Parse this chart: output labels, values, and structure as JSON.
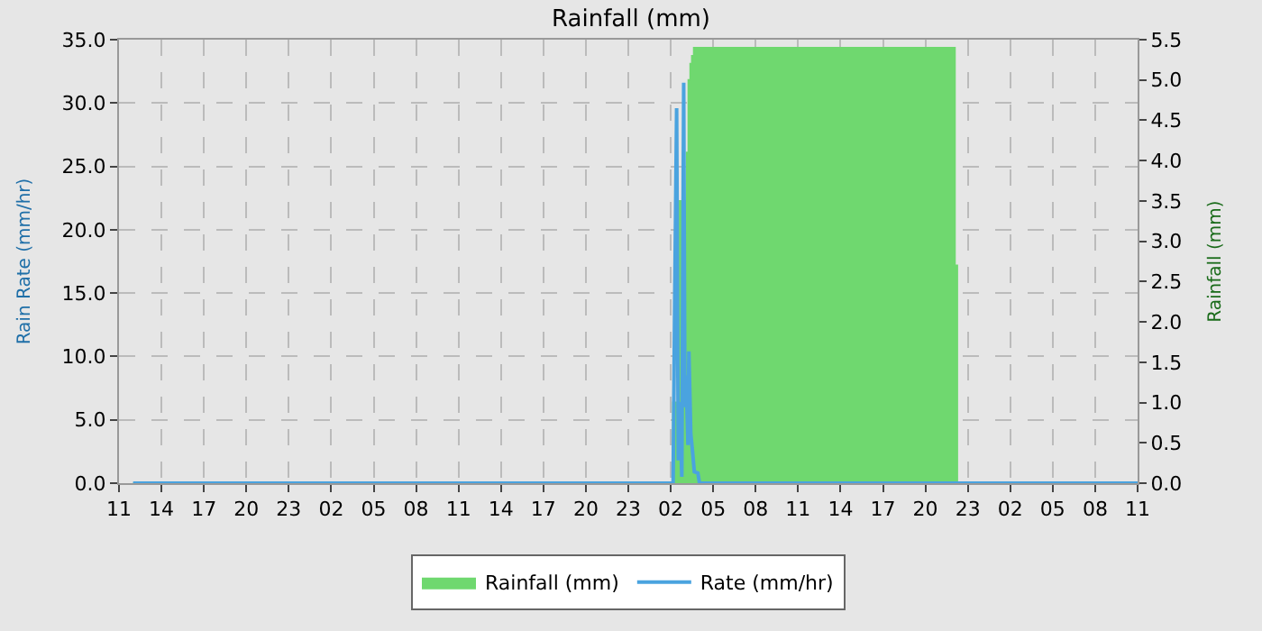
{
  "chart_data": {
    "type": "line",
    "title": "Rainfall (mm)",
    "ylabel": "Rain Rate (mm/hr)",
    "y2label": "Rainfall (mm)",
    "series": [
      {
        "name": "Rainfall (mm)",
        "type": "area",
        "axis": "y2",
        "color": "#6fd86f",
        "x": [
          "--01-01T12:00",
          "--01-03T02:10",
          "--01-03T02:38",
          "--01-03T03:08",
          "--01-03T03:15",
          "--01-03T03:23",
          "--01-03T03:30",
          "--01-03T03:38",
          "--01-03T03:45",
          "--01-03T22:05",
          "--01-03T22:15",
          "--01-04T11:00"
        ],
        "values": [
          0,
          1.0,
          3.5,
          4.1,
          5.0,
          5.2,
          5.3,
          5.4,
          5.4,
          2.7,
          0,
          0
        ]
      },
      {
        "name": "Rate (mm/hr)",
        "color": "#4aa3df",
        "x": [
          "--01-01T12:00",
          "--01-03T02:10",
          "--01-03T02:17",
          "--01-03T02:25",
          "--01-03T02:32",
          "--01-03T02:38",
          "--01-03T02:47",
          "--01-03T02:55",
          "--01-03T03:00",
          "--01-03T03:05",
          "--01-03T03:13",
          "--01-03T03:17",
          "--01-03T03:25",
          "--01-03T03:32",
          "--01-03T03:40",
          "--01-03T03:55",
          "--01-03T04:02",
          "--01-04T11:00"
        ],
        "values": [
          0,
          0,
          14.8,
          29.6,
          1.8,
          6.4,
          0.5,
          31.6,
          6.0,
          8.5,
          3.0,
          10.4,
          3.9,
          2.6,
          0.9,
          0.8,
          0,
          0
        ]
      }
    ],
    "xlim": [
      "--01-01T11:00",
      "--01-04T11:00"
    ],
    "xticks": [
      {
        "value": "--01-01T11:00",
        "label": "11"
      },
      {
        "value": "--01-01T14:00",
        "label": "14"
      },
      {
        "value": "--01-01T17:00",
        "label": "17"
      },
      {
        "value": "--01-01T20:00",
        "label": "20"
      },
      {
        "value": "--01-01T23:00",
        "label": "23"
      },
      {
        "value": "--01-02T02:00",
        "label": "02"
      },
      {
        "value": "--01-02T05:00",
        "label": "05"
      },
      {
        "value": "--01-02T08:00",
        "label": "08"
      },
      {
        "value": "--01-02T11:00",
        "label": "11"
      },
      {
        "value": "--01-02T14:00",
        "label": "14"
      },
      {
        "value": "--01-02T17:00",
        "label": "17"
      },
      {
        "value": "--01-02T20:00",
        "label": "20"
      },
      {
        "value": "--01-02T23:00",
        "label": "23"
      },
      {
        "value": "--01-03T02:00",
        "label": "02"
      },
      {
        "value": "--01-03T05:00",
        "label": "05"
      },
      {
        "value": "--01-03T08:00",
        "label": "08"
      },
      {
        "value": "--01-03T11:00",
        "label": "11"
      },
      {
        "value": "--01-03T14:00",
        "label": "14"
      },
      {
        "value": "--01-03T17:00",
        "label": "17"
      },
      {
        "value": "--01-03T20:00",
        "label": "20"
      },
      {
        "value": "--01-03T23:00",
        "label": "23"
      },
      {
        "value": "--01-04T02:00",
        "label": "02"
      },
      {
        "value": "--01-04T05:00",
        "label": "05"
      },
      {
        "value": "--01-04T08:00",
        "label": "08"
      },
      {
        "value": "--01-04T11:00",
        "label": "11"
      }
    ],
    "ylim": [
      0,
      35
    ],
    "yticks": [
      {
        "value": 0,
        "label": "0.0"
      },
      {
        "value": 5,
        "label": "5.0"
      },
      {
        "value": 10,
        "label": "10.0"
      },
      {
        "value": 15,
        "label": "15.0"
      },
      {
        "value": 20,
        "label": "20.0"
      },
      {
        "value": 25,
        "label": "25.0"
      },
      {
        "value": 30,
        "label": "30.0"
      },
      {
        "value": 35,
        "label": "35.0"
      }
    ],
    "y2lim": [
      0,
      5.5
    ],
    "y2ticks": [
      {
        "value": 0,
        "label": "0.0"
      },
      {
        "value": 0.5,
        "label": "0.5"
      },
      {
        "value": 1,
        "label": "1.0"
      },
      {
        "value": 1.5,
        "label": "1.5"
      },
      {
        "value": 2,
        "label": "2.0"
      },
      {
        "value": 2.5,
        "label": "2.5"
      },
      {
        "value": 3,
        "label": "3.0"
      },
      {
        "value": 3.5,
        "label": "3.5"
      },
      {
        "value": 4,
        "label": "4.0"
      },
      {
        "value": 4.5,
        "label": "4.5"
      },
      {
        "value": 5,
        "label": "5.0"
      },
      {
        "value": 5.5,
        "label": "5.5"
      }
    ],
    "grid": true,
    "legend": "bottom",
    "marker": "none"
  }
}
